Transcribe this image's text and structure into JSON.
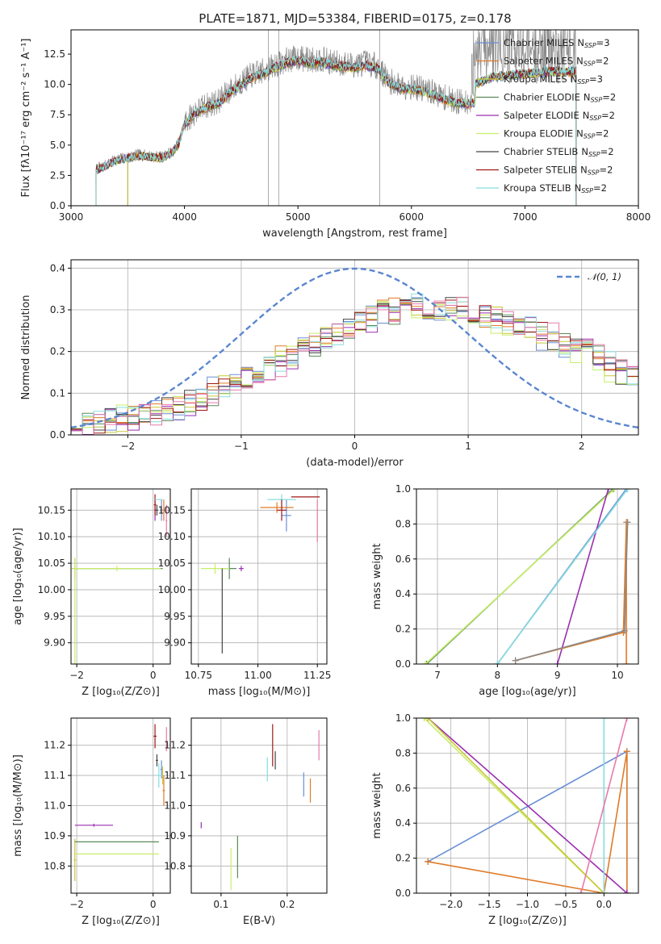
{
  "title": "PLATE=1871, MJD=53384, FIBERID=0175, z=0.178",
  "palette": [
    "#6a8fd6",
    "#e07b28",
    "#c8c83a",
    "#5a8a5a",
    "#9a2fb0",
    "#c8ee6a",
    "#444444",
    "#a01818",
    "#88dddd",
    "#e87aaa",
    "#8a8a8a"
  ],
  "legend": [
    {
      "name": "Chabrier MILES",
      "nssp": "=3",
      "color": "#6a8fd6"
    },
    {
      "name": "Salpeter MILES",
      "nssp": "=2",
      "color": "#e07b28"
    },
    {
      "name": "Kroupa MILES",
      "nssp": "=3",
      "color": "#c8c83a"
    },
    {
      "name": "Chabrier ELODIE",
      "nssp": "=2",
      "color": "#5a8a5a"
    },
    {
      "name": "Salpeter ELODIE",
      "nssp": "=2",
      "color": "#9a2fb0"
    },
    {
      "name": "Kroupa ELODIE",
      "nssp": "=2",
      "color": "#c8ee6a"
    },
    {
      "name": "Chabrier STELIB",
      "nssp": "=2",
      "color": "#444444"
    },
    {
      "name": "Salpeter STELIB",
      "nssp": "=2",
      "color": "#a01818"
    },
    {
      "name": "Kroupa STELIB",
      "nssp": "=2",
      "color": "#88dddd"
    }
  ],
  "legend_prefix": "N",
  "legend_sub": "SSP",
  "chart_data": [
    {
      "id": "spectrum",
      "type": "line",
      "xlabel": "wavelength [Angstrom, rest frame]",
      "ylabel": "Flux [fλ10⁻¹⁷ erg cm⁻² s⁻¹ A⁻¹]",
      "xlim": [
        3000,
        8000
      ],
      "ylim": [
        0,
        14.5
      ],
      "xticks": [
        3000,
        4000,
        5000,
        6000,
        7000,
        8000
      ],
      "yticks": [
        0.0,
        2.5,
        5.0,
        7.5,
        10.0,
        12.5
      ],
      "ytick_labels": [
        "0.0",
        "2.5",
        "5.0",
        "7.5",
        "10.0",
        "12.5"
      ],
      "grid": false,
      "legend_position": "top-right",
      "data_range": [
        3220,
        6560
      ],
      "model_range": [
        3500,
        7450
      ],
      "continuum": {
        "x": [
          3220,
          3300,
          3400,
          3500,
          3600,
          3700,
          3800,
          3900,
          3950,
          4000,
          4100,
          4200,
          4300,
          4400,
          4500,
          4600,
          4700,
          4800,
          4900,
          5000,
          5100,
          5200,
          5300,
          5400,
          5500,
          5600,
          5700,
          5800,
          5900,
          6000,
          6100,
          6200,
          6300,
          6400,
          6500,
          6560
        ],
        "y": [
          3.0,
          3.3,
          3.8,
          4.0,
          4.2,
          4.1,
          4.0,
          4.5,
          5.2,
          6.8,
          7.8,
          8.3,
          8.6,
          9.5,
          10.2,
          10.8,
          11.1,
          11.6,
          12.0,
          12.2,
          12.0,
          12.1,
          11.8,
          11.7,
          11.6,
          11.8,
          11.5,
          10.3,
          9.9,
          9.8,
          9.6,
          9.3,
          8.9,
          8.6,
          8.6,
          8.7
        ]
      },
      "model_continuum": {
        "x": [
          6560,
          6700,
          6900,
          7100,
          7300,
          7450
        ],
        "y": [
          10.2,
          10.8,
          11.0,
          11.2,
          11.3,
          11.3
        ]
      }
    },
    {
      "id": "residuals",
      "type": "line",
      "xlabel": "(data-model)/error",
      "ylabel": "Normed distribution",
      "xlim": [
        -2.5,
        2.5
      ],
      "ylim": [
        0,
        0.42
      ],
      "xticks": [
        -2,
        -1,
        0,
        1,
        2
      ],
      "xtick_labels": [
        "−2",
        "−1",
        "0",
        "1",
        "2"
      ],
      "yticks": [
        0.0,
        0.1,
        0.2,
        0.3,
        0.4
      ],
      "ytick_labels": [
        "0.0",
        "0.1",
        "0.2",
        "0.3",
        "0.4"
      ],
      "grid": true,
      "legend_position": "top-right",
      "normal_label": "𝒩(0, 1)",
      "normal_color": "#5b86d0",
      "hist_shape": {
        "x": [
          -2.5,
          -2.0,
          -1.5,
          -1.0,
          -0.5,
          0.0,
          0.5,
          1.0,
          1.5,
          2.0,
          2.5
        ],
        "y": [
          0.02,
          0.04,
          0.07,
          0.13,
          0.2,
          0.27,
          0.31,
          0.3,
          0.26,
          0.2,
          0.13
        ]
      }
    },
    {
      "id": "age-vs-Z",
      "type": "scatter",
      "xlabel": "Z [log₁₀(Z/Z⊙)]",
      "ylabel": "age  [log₁₀(age/yr)]",
      "xlim": [
        -2.15,
        0.45
      ],
      "ylim": [
        9.86,
        10.19
      ],
      "xticks": [
        -2,
        0
      ],
      "xtick_labels": [
        "−2",
        "0"
      ],
      "yticks": [
        9.9,
        9.95,
        10.0,
        10.05,
        10.1,
        10.15
      ],
      "ytick_labels": [
        "9.90",
        "9.95",
        "10.00",
        "10.05",
        "10.10",
        "10.15"
      ],
      "grid": true,
      "points": [
        {
          "c": 0,
          "x": 0.22,
          "y": 10.15,
          "xe": 0.03,
          "ye": 0.02
        },
        {
          "c": 1,
          "x": 0.28,
          "y": 10.15,
          "xe": 0.03,
          "ye": 0.02
        },
        {
          "c": 2,
          "x": -2.05,
          "y": 10.04,
          "xe": 0.08,
          "ye": 0.02
        },
        {
          "c": 3,
          "x": -0.9,
          "y": 10.04,
          "xe": 1.15,
          "ye": 0.0
        },
        {
          "c": 4,
          "x": 0.05,
          "y": 10.15,
          "xe": 0.02,
          "ye": 0.02
        },
        {
          "c": 5,
          "x": -0.95,
          "y": 10.04,
          "xe": 1.15,
          "ye": 0.005
        },
        {
          "c": 6,
          "x": 0.1,
          "y": 10.15,
          "xe": 0.03,
          "ye": 0.01
        },
        {
          "c": 7,
          "x": 0.05,
          "y": 10.16,
          "xe": 0.03,
          "ye": 0.02
        },
        {
          "c": 8,
          "x": 0.15,
          "y": 10.17,
          "xe": 0.1,
          "ye": 0.0
        },
        {
          "c": 9,
          "x": 0.35,
          "y": 10.13,
          "xe": 0.02,
          "ye": 0.03
        },
        {
          "c": 5,
          "x": -2.05,
          "y": 9.96,
          "xe": 0.0,
          "ye": 0.1
        }
      ]
    },
    {
      "id": "age-vs-mass",
      "type": "scatter",
      "xlabel": "mass [log₁₀(M/M⊙)]",
      "ylabel": "",
      "xlim": [
        10.72,
        11.29
      ],
      "ylim": [
        9.86,
        10.19
      ],
      "xticks": [
        10.75,
        11.0,
        11.25
      ],
      "xtick_labels": [
        "10.75",
        "11.00",
        "11.25"
      ],
      "yticks": [
        9.9,
        9.95,
        10.0,
        10.05,
        10.1,
        10.15
      ],
      "ytick_labels": [
        "9.90",
        "9.95",
        "10.00",
        "10.05",
        "10.10",
        "10.15"
      ],
      "grid": true,
      "points": [
        {
          "c": 0,
          "x": 11.12,
          "y": 10.14,
          "xe": 0.02,
          "ye": 0.03
        },
        {
          "c": 1,
          "x": 11.08,
          "y": 10.155,
          "xe": 0.07,
          "ye": 0.01
        },
        {
          "c": 3,
          "x": 10.88,
          "y": 10.04,
          "xe": 0.03,
          "ye": 0.02
        },
        {
          "c": 4,
          "x": 10.93,
          "y": 10.04,
          "xe": 0.01,
          "ye": 0.005
        },
        {
          "c": 5,
          "x": 10.82,
          "y": 10.04,
          "xe": 0.06,
          "ye": 0.01
        },
        {
          "c": 6,
          "x": 10.85,
          "y": 9.96,
          "xe": 0.0,
          "ye": 0.08
        },
        {
          "c": 7,
          "x": 11.2,
          "y": 10.175,
          "xe": 0.06,
          "ye": 0.0
        },
        {
          "c": 8,
          "x": 11.1,
          "y": 10.17,
          "xe": 0.06,
          "ye": 0.01
        },
        {
          "c": 9,
          "x": 11.25,
          "y": 10.13,
          "xe": 0.0,
          "ye": 0.04
        },
        {
          "c": 7,
          "x": 11.1,
          "y": 10.15,
          "xe": 0.02,
          "ye": 0.02
        }
      ]
    },
    {
      "id": "mass-weight-vs-age",
      "type": "line",
      "xlabel": "age  [log₁₀(age/yr)]",
      "ylabel": "mass weight",
      "xlim": [
        6.65,
        10.35
      ],
      "ylim": [
        0,
        1
      ],
      "xticks": [
        7,
        8,
        9,
        10
      ],
      "yticks": [
        0.0,
        0.2,
        0.4,
        0.6,
        0.8,
        1.0
      ],
      "ytick_labels": [
        "0.0",
        "0.2",
        "0.4",
        "0.6",
        "0.8",
        "1.0"
      ],
      "grid": true,
      "series": [
        {
          "c": 0,
          "x": [
            8.0,
            10.15
          ],
          "y": [
            0.0,
            1.0
          ]
        },
        {
          "c": 3,
          "x": [
            6.82,
            9.93
          ],
          "y": [
            0.0,
            1.0
          ]
        },
        {
          "c": 5,
          "x": [
            6.8,
            9.95
          ],
          "y": [
            0.0,
            1.0
          ]
        },
        {
          "c": 4,
          "x": [
            9.0,
            9.85
          ],
          "y": [
            0.0,
            1.0
          ]
        },
        {
          "c": 8,
          "x": [
            8.0,
            10.17
          ],
          "y": [
            0.0,
            1.0
          ]
        },
        {
          "c": 1,
          "x": [
            8.3,
            10.1,
            10.15,
            10.15
          ],
          "y": [
            0.02,
            0.18,
            0.81,
            0.0
          ]
        },
        {
          "c": 10,
          "x": [
            8.3,
            10.12,
            10.17
          ],
          "y": [
            0.02,
            0.19,
            0.81
          ]
        }
      ]
    },
    {
      "id": "mass-vs-Z",
      "type": "scatter",
      "xlabel": "Z [log₁₀(Z/Z⊙)]",
      "ylabel": "mass [log₁₀(M/M⊙)]",
      "xlim": [
        -2.15,
        0.45
      ],
      "ylim": [
        10.71,
        11.29
      ],
      "xticks": [
        -2,
        0
      ],
      "xtick_labels": [
        "−2",
        "0"
      ],
      "yticks": [
        10.8,
        10.9,
        11.0,
        11.1,
        11.2
      ],
      "ytick_labels": [
        "10.8",
        "10.9",
        "11.0",
        "11.1",
        "11.2"
      ],
      "grid": true,
      "points": [
        {
          "c": 0,
          "x": 0.22,
          "y": 11.12,
          "xe": 0.03,
          "ye": 0.03
        },
        {
          "c": 1,
          "x": 0.28,
          "y": 11.05,
          "xe": 0.03,
          "ye": 0.05
        },
        {
          "c": 2,
          "x": -2.05,
          "y": 10.82,
          "xe": 0.03,
          "ye": 0.07
        },
        {
          "c": 3,
          "x": -0.95,
          "y": 10.88,
          "xe": 1.1,
          "ye": 0.0
        },
        {
          "c": 4,
          "x": -1.55,
          "y": 10.935,
          "xe": 0.5,
          "ye": 0.005
        },
        {
          "c": 5,
          "x": -0.95,
          "y": 10.84,
          "xe": 1.1,
          "ye": 0.0
        },
        {
          "c": 6,
          "x": 0.1,
          "y": 11.15,
          "xe": 0.03,
          "ye": 0.02
        },
        {
          "c": 7,
          "x": 0.05,
          "y": 11.23,
          "xe": 0.04,
          "ye": 0.04
        },
        {
          "c": 8,
          "x": 0.15,
          "y": 11.1,
          "xe": 0.08,
          "ye": 0.04
        },
        {
          "c": 9,
          "x": 0.35,
          "y": 11.22,
          "xe": 0.0,
          "ye": 0.04
        },
        {
          "c": 2,
          "x": 0.25,
          "y": 11.1,
          "xe": 0.0,
          "ye": 0.03
        }
      ]
    },
    {
      "id": "mass-vs-ebv",
      "type": "scatter",
      "xlabel": "E(B-V)",
      "ylabel": "",
      "xlim": [
        0.055,
        0.26
      ],
      "ylim": [
        10.71,
        11.29
      ],
      "xticks": [
        0.1,
        0.2
      ],
      "xtick_labels": [
        "0.1",
        "0.2"
      ],
      "yticks": [
        10.8,
        10.9,
        11.0,
        11.1,
        11.2
      ],
      "ytick_labels": [
        "10.8",
        "10.9",
        "11.0",
        "11.1",
        "11.2"
      ],
      "grid": true,
      "points": [
        {
          "c": 0,
          "x": 0.225,
          "y": 11.07,
          "xe": 0.0,
          "ye": 0.04
        },
        {
          "c": 1,
          "x": 0.235,
          "y": 11.05,
          "xe": 0.0,
          "ye": 0.04
        },
        {
          "c": 3,
          "x": 0.125,
          "y": 10.83,
          "xe": 0.0,
          "ye": 0.07
        },
        {
          "c": 4,
          "x": 0.07,
          "y": 10.935,
          "xe": 0.0,
          "ye": 0.01
        },
        {
          "c": 5,
          "x": 0.115,
          "y": 10.79,
          "xe": 0.0,
          "ye": 0.07
        },
        {
          "c": 6,
          "x": 0.182,
          "y": 11.15,
          "xe": 0.0,
          "ye": 0.03
        },
        {
          "c": 7,
          "x": 0.178,
          "y": 11.2,
          "xe": 0.0,
          "ye": 0.07
        },
        {
          "c": 8,
          "x": 0.17,
          "y": 11.12,
          "xe": 0.0,
          "ye": 0.04
        },
        {
          "c": 9,
          "x": 0.248,
          "y": 11.2,
          "xe": 0.0,
          "ye": 0.05
        }
      ]
    },
    {
      "id": "mass-weight-vs-Z",
      "type": "line",
      "xlabel": "Z [log₁₀(Z/Z⊙)]",
      "ylabel": "mass weight",
      "xlim": [
        -2.45,
        0.45
      ],
      "ylim": [
        0,
        1
      ],
      "xticks": [
        -2.0,
        -1.5,
        -1.0,
        -0.5,
        0.0
      ],
      "xtick_labels": [
        "−2.0",
        "−1.5",
        "−1.0",
        "−0.5",
        "0.0"
      ],
      "yticks": [
        0.0,
        0.2,
        0.4,
        0.6,
        0.8,
        1.0
      ],
      "ytick_labels": [
        "0.0",
        "0.2",
        "0.4",
        "0.6",
        "0.8",
        "1.0"
      ],
      "grid": true,
      "series": [
        {
          "c": 0,
          "x": [
            -2.3,
            0.3,
            0.3
          ],
          "y": [
            0.18,
            0.81,
            0.0
          ]
        },
        {
          "c": 1,
          "x": [
            -2.3,
            0.0,
            0.3,
            0.3
          ],
          "y": [
            0.18,
            0.0,
            0.81,
            0.0
          ]
        },
        {
          "c": 4,
          "x": [
            -2.3,
            0.3
          ],
          "y": [
            1.0,
            0.0
          ]
        },
        {
          "c": 5,
          "x": [
            -2.35,
            0.0
          ],
          "y": [
            1.0,
            0.0
          ]
        },
        {
          "c": 2,
          "x": [
            -2.3,
            0.0
          ],
          "y": [
            1.0,
            0.0
          ]
        },
        {
          "c": 8,
          "x": [
            0.0,
            0.0
          ],
          "y": [
            0.0,
            1.0
          ]
        },
        {
          "c": 9,
          "x": [
            -0.3,
            0.3
          ],
          "y": [
            0.0,
            1.0
          ]
        }
      ]
    }
  ]
}
